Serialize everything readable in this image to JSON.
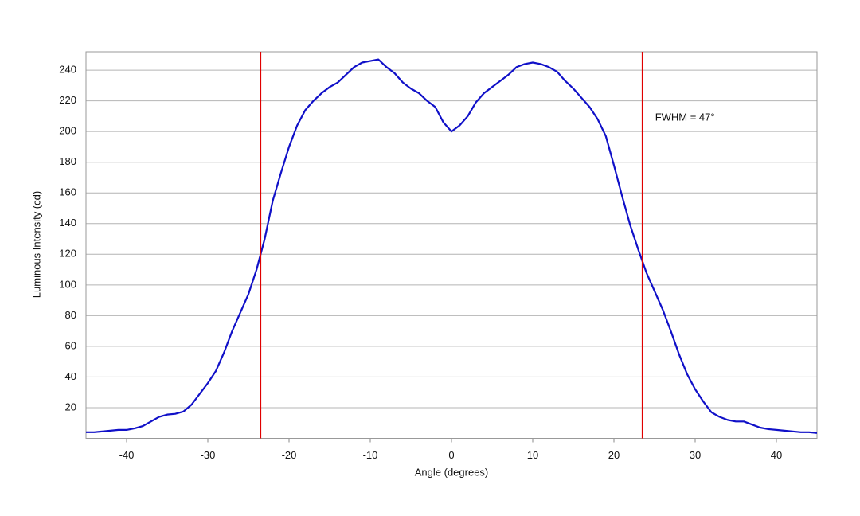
{
  "chart_data": {
    "type": "line",
    "x_label": "Angle (degrees)",
    "y_label": "Luminous Intensity (cd)",
    "annotation": "FWHM = 47°",
    "x": [
      -45,
      -44,
      -43,
      -42,
      -41,
      -40,
      -39,
      -38,
      -37,
      -36,
      -35,
      -34,
      -33,
      -32,
      -31,
      -30,
      -29,
      -28,
      -27,
      -26,
      -25,
      -24,
      -23,
      -22,
      -21,
      -20,
      -19,
      -18,
      -17,
      -16,
      -15,
      -14,
      -13,
      -12,
      -11,
      -10,
      -9,
      -8,
      -7,
      -6,
      -5,
      -4,
      -3,
      -2,
      -1,
      0,
      1,
      2,
      3,
      4,
      5,
      6,
      7,
      8,
      9,
      10,
      11,
      12,
      13,
      14,
      15,
      16,
      17,
      18,
      19,
      20,
      21,
      22,
      23,
      24,
      25,
      26,
      27,
      28,
      29,
      30,
      31,
      32,
      33,
      34,
      35,
      36,
      37,
      38,
      39,
      40,
      41,
      42,
      43,
      44,
      45
    ],
    "series": [
      {
        "color": "#1010c8",
        "values": [
          4,
          4,
          4.5,
          5,
          5.5,
          5.5,
          6.5,
          8,
          11,
          14,
          15.5,
          16,
          17.5,
          22,
          29,
          36,
          44,
          56,
          70,
          82,
          94,
          110,
          130,
          155,
          173,
          190,
          204,
          214,
          220,
          225,
          229,
          232,
          237,
          242,
          245,
          246,
          247,
          242,
          238,
          232,
          228,
          225,
          220,
          216,
          206,
          200,
          204,
          210,
          219,
          225,
          229,
          233,
          237,
          242,
          244,
          245,
          244,
          242,
          239,
          233,
          228,
          222,
          216,
          208,
          197,
          178,
          158,
          139,
          123,
          108,
          96,
          84,
          70,
          55,
          42,
          32,
          24,
          17,
          14,
          12,
          11,
          11,
          9,
          7,
          6,
          5.5,
          5,
          4.5,
          4,
          4,
          3.5
        ]
      }
    ],
    "vlines": [
      -23.5,
      23.5
    ],
    "vline_color": "#e00000",
    "xlim": [
      -45,
      45
    ],
    "ylim": [
      0,
      252
    ],
    "xticks": [
      -40,
      -30,
      -20,
      -10,
      0,
      10,
      20,
      30,
      40
    ],
    "yticks": [
      20,
      40,
      60,
      80,
      100,
      120,
      140,
      160,
      180,
      200,
      220,
      240
    ],
    "grid": true
  }
}
